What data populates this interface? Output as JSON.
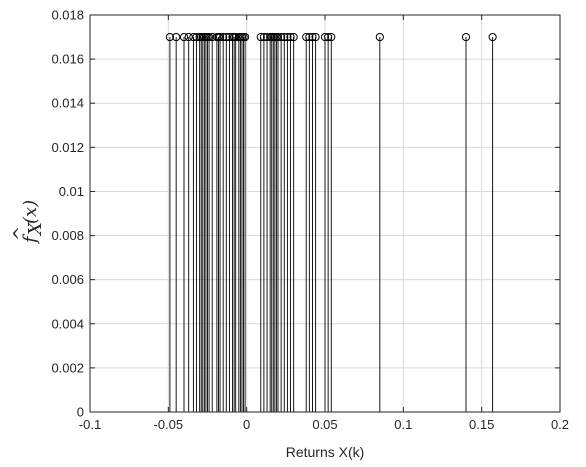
{
  "chart_data": {
    "type": "stem",
    "title": "",
    "xlabel": "Returns X(k)",
    "ylabel": {
      "base": "f",
      "accent": "^",
      "subscript": "X",
      "argument": "(x)"
    },
    "xlim": [
      -0.1,
      0.2
    ],
    "ylim": [
      0,
      0.018
    ],
    "xticks": [
      -0.1,
      -0.05,
      0,
      0.05,
      0.1,
      0.15,
      0.2
    ],
    "xtick_labels": [
      "-0.1",
      "-0.05",
      "0",
      "0.05",
      "0.1",
      "0.15",
      "0.2"
    ],
    "yticks": [
      0,
      0.002,
      0.004,
      0.006,
      0.008,
      0.01,
      0.012,
      0.014,
      0.016,
      0.018
    ],
    "ytick_labels": [
      "0",
      "0.002",
      "0.004",
      "0.006",
      "0.008",
      "0.01",
      "0.012",
      "0.014",
      "0.016",
      "0.018"
    ],
    "grid": true,
    "marker": "circle-open",
    "color": "#000000",
    "y_value": 0.017,
    "x": [
      -0.049,
      -0.045,
      -0.04,
      -0.037,
      -0.034,
      -0.032,
      -0.03,
      -0.029,
      -0.028,
      -0.027,
      -0.026,
      -0.025,
      -0.024,
      -0.022,
      -0.019,
      -0.018,
      -0.017,
      -0.015,
      -0.013,
      -0.011,
      -0.009,
      -0.008,
      -0.007,
      -0.005,
      -0.004,
      -0.003,
      -0.002,
      -0.001,
      0.009,
      0.011,
      0.013,
      0.015,
      0.016,
      0.017,
      0.018,
      0.019,
      0.02,
      0.022,
      0.024,
      0.026,
      0.028,
      0.03,
      0.038,
      0.04,
      0.042,
      0.044,
      0.05,
      0.052,
      0.054,
      0.085,
      0.14,
      0.157
    ]
  }
}
